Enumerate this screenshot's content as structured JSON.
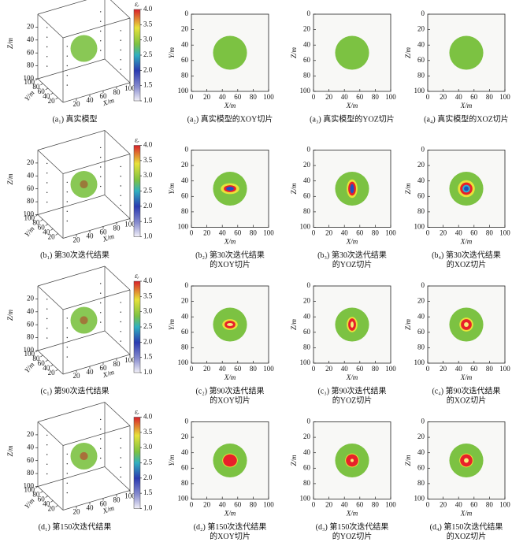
{
  "chart_data": [
    {
      "type": "cube",
      "caption": [
        "(a₁) 真实模型"
      ],
      "xlabel": "X/m",
      "ylabel": "Y/m",
      "zlabel": "Z/m",
      "xlim": [
        0,
        100
      ],
      "ylim": [
        0,
        100
      ],
      "zlim": [
        0,
        100
      ],
      "xticks": [
        20,
        40,
        60,
        80,
        100
      ],
      "yticks": [
        20,
        40,
        60,
        80,
        100
      ],
      "zticks": [
        20,
        40,
        60,
        80,
        100
      ],
      "sphere": {
        "r": 20,
        "color": "#7cc242"
      },
      "core": [],
      "colorbar": {
        "label": "εᵣ",
        "lim": [
          1,
          4
        ],
        "ticks": [
          {
            "value": 1,
            "label": "1.0"
          },
          {
            "value": 1.5,
            "label": "1.5"
          },
          {
            "value": 2,
            "label": "2.0"
          },
          {
            "value": 2.5,
            "label": "2.5"
          },
          {
            "value": 3,
            "label": "3.0"
          },
          {
            "value": 3.5,
            "label": "3.5"
          },
          {
            "value": 4,
            "label": "4.0"
          }
        ]
      }
    },
    {
      "type": "slice",
      "caption": [
        "(a₂) 真实模型的XOY切片"
      ],
      "xlabel": "X/m",
      "ylabel": "Y/m",
      "xlim": [
        0,
        100
      ],
      "ylim": [
        100,
        0
      ],
      "xticks": [
        0,
        20,
        40,
        60,
        80,
        100
      ],
      "yticks": [
        0,
        20,
        40,
        60,
        80,
        100
      ],
      "disk": {
        "cx": 50,
        "cy": 50,
        "r": 22,
        "color": "#7cc242"
      },
      "core": []
    },
    {
      "type": "slice",
      "caption": [
        "(a₃) 真实模型的YOZ切片"
      ],
      "xlabel": "X/m",
      "ylabel": "Z/m",
      "xlim": [
        0,
        100
      ],
      "ylim": [
        100,
        0
      ],
      "xticks": [
        0,
        20,
        40,
        60,
        80,
        100
      ],
      "yticks": [
        0,
        20,
        40,
        60,
        80,
        100
      ],
      "disk": {
        "cx": 50,
        "cy": 50,
        "r": 22,
        "color": "#7cc242"
      },
      "core": []
    },
    {
      "type": "slice",
      "caption": [
        "(a₄) 真实模型的XOZ切片"
      ],
      "xlabel": "X/m",
      "ylabel": "Z/m",
      "xlim": [
        0,
        100
      ],
      "ylim": [
        100,
        0
      ],
      "xticks": [
        0,
        20,
        40,
        60,
        80,
        100
      ],
      "yticks": [
        0,
        20,
        40,
        60,
        80,
        100
      ],
      "disk": {
        "cx": 50,
        "cy": 50,
        "r": 22,
        "color": "#7cc242"
      },
      "core": []
    },
    {
      "type": "cube",
      "caption": [
        "(b₁) 第30次迭代结果"
      ],
      "xlabel": "X/m",
      "ylabel": "Y/m",
      "zlabel": "Z/m",
      "xlim": [
        0,
        100
      ],
      "ylim": [
        0,
        100
      ],
      "zlim": [
        0,
        100
      ],
      "xticks": [
        20,
        40,
        60,
        80,
        100
      ],
      "yticks": [
        20,
        40,
        60,
        80,
        100
      ],
      "zticks": [
        20,
        40,
        60,
        80,
        100
      ],
      "sphere": {
        "r": 20,
        "color": "#7cc242"
      },
      "core": [
        {
          "r": 6,
          "color": "#9a7a3a"
        }
      ],
      "colorbar": {
        "label": "εᵣ",
        "lim": [
          1,
          4
        ],
        "ticks": [
          {
            "value": 1,
            "label": "1.0"
          },
          {
            "value": 1.5,
            "label": "1.5"
          },
          {
            "value": 2,
            "label": "2.0"
          },
          {
            "value": 2.5,
            "label": "2.5"
          },
          {
            "value": 3,
            "label": "3.0"
          },
          {
            "value": 3.5,
            "label": "3.5"
          },
          {
            "value": 4,
            "label": "4.0"
          }
        ]
      }
    },
    {
      "type": "slice",
      "caption": [
        "(b₂) 第30次迭代结果",
        "的XOY切片"
      ],
      "xlabel": "X/m",
      "ylabel": "Y/m",
      "xlim": [
        0,
        100
      ],
      "ylim": [
        100,
        0
      ],
      "xticks": [
        0,
        20,
        40,
        60,
        80,
        100
      ],
      "yticks": [
        0,
        20,
        40,
        60,
        80,
        100
      ],
      "disk": {
        "cx": 50,
        "cy": 50,
        "r": 22,
        "color": "#7cc242"
      },
      "core": [
        {
          "rx": 12,
          "ry": 7,
          "color": "#e8e23a"
        },
        {
          "rx": 8,
          "ry": 4.5,
          "color": "#e8202a"
        },
        {
          "rx": 5,
          "ry": 2.5,
          "color": "#2050c0"
        }
      ]
    },
    {
      "type": "slice",
      "caption": [
        "(b₃) 第30次迭代结果",
        "的YOZ切片"
      ],
      "xlabel": "X/m",
      "ylabel": "Z/m",
      "xlim": [
        0,
        100
      ],
      "ylim": [
        100,
        0
      ],
      "xticks": [
        0,
        20,
        40,
        60,
        80,
        100
      ],
      "yticks": [
        0,
        20,
        40,
        60,
        80,
        100
      ],
      "disk": {
        "cx": 50,
        "cy": 50,
        "r": 22,
        "color": "#7cc242"
      },
      "core": [
        {
          "rx": 7,
          "ry": 12,
          "color": "#e8e23a"
        },
        {
          "rx": 5,
          "ry": 9,
          "color": "#e8202a"
        },
        {
          "rx": 2.5,
          "ry": 6,
          "color": "#2050c0"
        }
      ]
    },
    {
      "type": "slice",
      "caption": [
        "(b₄) 第30次迭代结果",
        "的XOZ切片"
      ],
      "xlabel": "X/m",
      "ylabel": "Z/m",
      "xlim": [
        0,
        100
      ],
      "ylim": [
        100,
        0
      ],
      "xticks": [
        0,
        20,
        40,
        60,
        80,
        100
      ],
      "yticks": [
        0,
        20,
        40,
        60,
        80,
        100
      ],
      "disk": {
        "cx": 50,
        "cy": 50,
        "r": 22,
        "color": "#7cc242"
      },
      "core": [
        {
          "rx": 11,
          "ry": 11,
          "color": "#e8e23a"
        },
        {
          "rx": 8,
          "ry": 8,
          "color": "#e8202a"
        },
        {
          "rx": 5,
          "ry": 5,
          "color": "#30b0d0"
        },
        {
          "rx": 3,
          "ry": 3,
          "color": "#2050c0"
        }
      ]
    },
    {
      "type": "cube",
      "caption": [
        "(c₁) 第90次迭代结果"
      ],
      "xlabel": "X/m",
      "ylabel": "Y/m",
      "zlabel": "Z/m",
      "xlim": [
        0,
        100
      ],
      "ylim": [
        0,
        100
      ],
      "zlim": [
        0,
        100
      ],
      "xticks": [
        20,
        40,
        60,
        80,
        100
      ],
      "yticks": [
        20,
        40,
        60,
        80,
        100
      ],
      "zticks": [
        20,
        40,
        60,
        80,
        100
      ],
      "sphere": {
        "r": 20,
        "color": "#7cc242"
      },
      "core": [
        {
          "r": 6,
          "color": "#a0783a"
        }
      ],
      "colorbar": {
        "label": "εᵣ",
        "lim": [
          1,
          4
        ],
        "ticks": [
          {
            "value": 1,
            "label": "1.0"
          },
          {
            "value": 1.5,
            "label": "1.5"
          },
          {
            "value": 2,
            "label": "2.0"
          },
          {
            "value": 2.5,
            "label": "2.5"
          },
          {
            "value": 3,
            "label": "3.0"
          },
          {
            "value": 3.5,
            "label": "3.5"
          },
          {
            "value": 4,
            "label": "4.0"
          }
        ]
      }
    },
    {
      "type": "slice",
      "caption": [
        "(c₂) 第90次迭代结果",
        "的XOY切片"
      ],
      "xlabel": "X/m",
      "ylabel": "Y/m",
      "xlim": [
        0,
        100
      ],
      "ylim": [
        100,
        0
      ],
      "xticks": [
        0,
        20,
        40,
        60,
        80,
        100
      ],
      "yticks": [
        0,
        20,
        40,
        60,
        80,
        100
      ],
      "disk": {
        "cx": 50,
        "cy": 50,
        "r": 22,
        "color": "#7cc242"
      },
      "core": [
        {
          "rx": 10,
          "ry": 7,
          "color": "#e8e23a"
        },
        {
          "rx": 7,
          "ry": 5,
          "color": "#e8202a"
        },
        {
          "rx": 4,
          "ry": 2,
          "color": "#f4ec7a"
        }
      ]
    },
    {
      "type": "slice",
      "caption": [
        "(c₃) 第90次迭代结果",
        "的YOZ切片"
      ],
      "xlabel": "X/m",
      "ylabel": "Z/m",
      "xlim": [
        0,
        100
      ],
      "ylim": [
        100,
        0
      ],
      "xticks": [
        0,
        20,
        40,
        60,
        80,
        100
      ],
      "yticks": [
        0,
        20,
        40,
        60,
        80,
        100
      ],
      "disk": {
        "cx": 50,
        "cy": 50,
        "r": 22,
        "color": "#7cc242"
      },
      "core": [
        {
          "rx": 7,
          "ry": 10,
          "color": "#e8e23a"
        },
        {
          "rx": 5,
          "ry": 8,
          "color": "#e8202a"
        },
        {
          "rx": 2,
          "ry": 4,
          "color": "#f4ec7a"
        }
      ]
    },
    {
      "type": "slice",
      "caption": [
        "(c₄) 第90次迭代结果",
        "的XOZ切片"
      ],
      "xlabel": "X/m",
      "ylabel": "Z/m",
      "xlim": [
        0,
        100
      ],
      "ylim": [
        100,
        0
      ],
      "xticks": [
        0,
        20,
        40,
        60,
        80,
        100
      ],
      "yticks": [
        0,
        20,
        40,
        60,
        80,
        100
      ],
      "disk": {
        "cx": 50,
        "cy": 50,
        "r": 22,
        "color": "#7cc242"
      },
      "core": [
        {
          "rx": 9,
          "ry": 9,
          "color": "#e8e23a"
        },
        {
          "rx": 7,
          "ry": 7,
          "color": "#e8202a"
        },
        {
          "rx": 3,
          "ry": 3,
          "color": "#f4ec7a"
        }
      ]
    },
    {
      "type": "cube",
      "caption": [
        "(d₁) 第150次迭代结果"
      ],
      "xlabel": "X/m",
      "ylabel": "Y/m",
      "zlabel": "Z/m",
      "xlim": [
        0,
        100
      ],
      "ylim": [
        0,
        100
      ],
      "zlim": [
        0,
        100
      ],
      "xticks": [
        20,
        40,
        60,
        80,
        100
      ],
      "yticks": [
        20,
        40,
        60,
        80,
        100
      ],
      "zticks": [
        20,
        40,
        60,
        80,
        100
      ],
      "sphere": {
        "r": 20,
        "color": "#7cc242"
      },
      "core": [
        {
          "r": 6,
          "color": "#a8703a"
        }
      ],
      "colorbar": {
        "label": "εᵣ",
        "lim": [
          1,
          4
        ],
        "ticks": [
          {
            "value": 1,
            "label": "1.0"
          },
          {
            "value": 1.5,
            "label": "1.5"
          },
          {
            "value": 2,
            "label": "2.0"
          },
          {
            "value": 2.5,
            "label": "2.5"
          },
          {
            "value": 3,
            "label": "3.0"
          },
          {
            "value": 3.5,
            "label": "3.5"
          },
          {
            "value": 4,
            "label": "4.0"
          }
        ]
      }
    },
    {
      "type": "slice",
      "caption": [
        "(d₂) 第150次迭代结果",
        "的XOY切片"
      ],
      "xlabel": "X/m",
      "ylabel": "Y/m",
      "xlim": [
        0,
        100
      ],
      "ylim": [
        100,
        0
      ],
      "xticks": [
        0,
        20,
        40,
        60,
        80,
        100
      ],
      "yticks": [
        0,
        20,
        40,
        60,
        80,
        100
      ],
      "disk": {
        "cx": 50,
        "cy": 50,
        "r": 22,
        "color": "#7cc242"
      },
      "core": [
        {
          "rx": 10,
          "ry": 9,
          "color": "#e8e23a"
        },
        {
          "rx": 9,
          "ry": 8,
          "color": "#e8202a"
        }
      ]
    },
    {
      "type": "slice",
      "caption": [
        "(d₃) 第150次迭代结果",
        "的YOZ切片"
      ],
      "xlabel": "X/m",
      "ylabel": "Z/m",
      "xlim": [
        0,
        100
      ],
      "ylim": [
        100,
        0
      ],
      "xticks": [
        0,
        20,
        40,
        60,
        80,
        100
      ],
      "yticks": [
        0,
        20,
        40,
        60,
        80,
        100
      ],
      "disk": {
        "cx": 50,
        "cy": 50,
        "r": 22,
        "color": "#7cc242"
      },
      "core": [
        {
          "rx": 9,
          "ry": 9,
          "color": "#e8e23a"
        },
        {
          "rx": 8,
          "ry": 8,
          "color": "#e8202a"
        },
        {
          "rx": 2,
          "ry": 2,
          "color": "#f4ec7a"
        }
      ]
    },
    {
      "type": "slice",
      "caption": [
        "(d₄) 第150次迭代结果",
        "的XOZ切片"
      ],
      "xlabel": "X/m",
      "ylabel": "Z/m",
      "xlim": [
        0,
        100
      ],
      "ylim": [
        100,
        0
      ],
      "xticks": [
        0,
        20,
        40,
        60,
        80,
        100
      ],
      "yticks": [
        0,
        20,
        40,
        60,
        80,
        100
      ],
      "disk": {
        "cx": 50,
        "cy": 50,
        "r": 22,
        "color": "#7cc242"
      },
      "core": [
        {
          "rx": 9,
          "ry": 9,
          "color": "#e8e23a"
        },
        {
          "rx": 8,
          "ry": 8,
          "color": "#e8202a"
        },
        {
          "rx": 3,
          "ry": 3,
          "color": "#f4ec7a"
        }
      ]
    }
  ]
}
